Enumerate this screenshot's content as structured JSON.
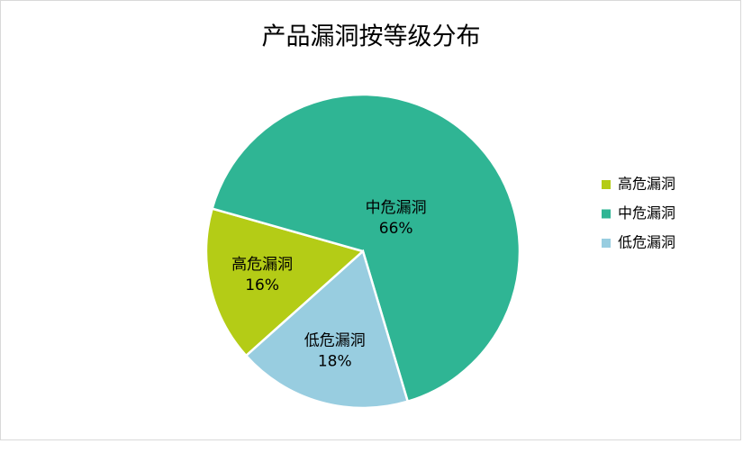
{
  "chart_data": {
    "type": "pie",
    "title": "产品漏洞按等级分布",
    "categories": [
      "高危漏洞",
      "中危漏洞",
      "低危漏洞"
    ],
    "values": [
      16,
      66,
      18
    ],
    "value_labels": [
      "16%",
      "66%",
      "18%"
    ],
    "colors": [
      "#b4cc16",
      "#2fb594",
      "#98cde0"
    ],
    "legend": "right"
  }
}
